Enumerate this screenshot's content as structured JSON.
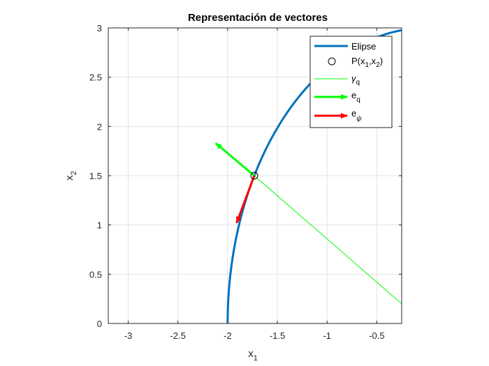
{
  "chart_data": {
    "type": "line",
    "title": "Representación de vectores",
    "xlabel": {
      "base": "x",
      "sub": "1"
    },
    "ylabel": {
      "base": "x",
      "sub": "2"
    },
    "xlim": [
      -3.2,
      -0.25
    ],
    "ylim": [
      0,
      3
    ],
    "xticks": [
      -3,
      -2.5,
      -2,
      -1.5,
      -1,
      -0.5
    ],
    "xtick_labels": [
      "-3",
      "-2.5",
      "-2",
      "-1.5",
      "-1",
      "-0.5"
    ],
    "yticks": [
      0,
      0.5,
      1,
      1.5,
      2,
      2.5,
      3
    ],
    "ytick_labels": [
      "0",
      "0.5",
      "1",
      "1.5",
      "2",
      "2.5",
      "3"
    ],
    "grid": true,
    "legend_position": "top-right",
    "ellipse": {
      "a": 2,
      "b": 3,
      "t_start": 0,
      "t_end": 1.5
    },
    "series": [
      {
        "name": "Elipse",
        "kind": "curve",
        "color": "#0072BD"
      },
      {
        "name": "P(x1,x2)",
        "kind": "marker",
        "x": -1.732,
        "y": 1.5,
        "color": "#000000"
      },
      {
        "name": "γq",
        "kind": "line",
        "x": [
          -1.732,
          -0.25
        ],
        "y": [
          1.5,
          0.2
        ],
        "color": "#00FF00"
      },
      {
        "name": "eq",
        "kind": "arrow",
        "x": [
          -1.732,
          -2.12
        ],
        "y": [
          1.5,
          1.83
        ],
        "color": "#00FF00"
      },
      {
        "name": "eψ",
        "kind": "arrow",
        "x": [
          -1.732,
          -1.91
        ],
        "y": [
          1.5,
          1.02
        ],
        "color": "#FF0000"
      }
    ],
    "legend": [
      {
        "text": "Elipse"
      },
      {
        "text": "P(x",
        "sub1": "1",
        "mid": ",x",
        "sub2": "2",
        "end": ")"
      },
      {
        "text": "γ",
        "sub1": "q"
      },
      {
        "text": "e",
        "sub1": "q"
      },
      {
        "text": "e",
        "sub1": "ψ"
      }
    ]
  }
}
